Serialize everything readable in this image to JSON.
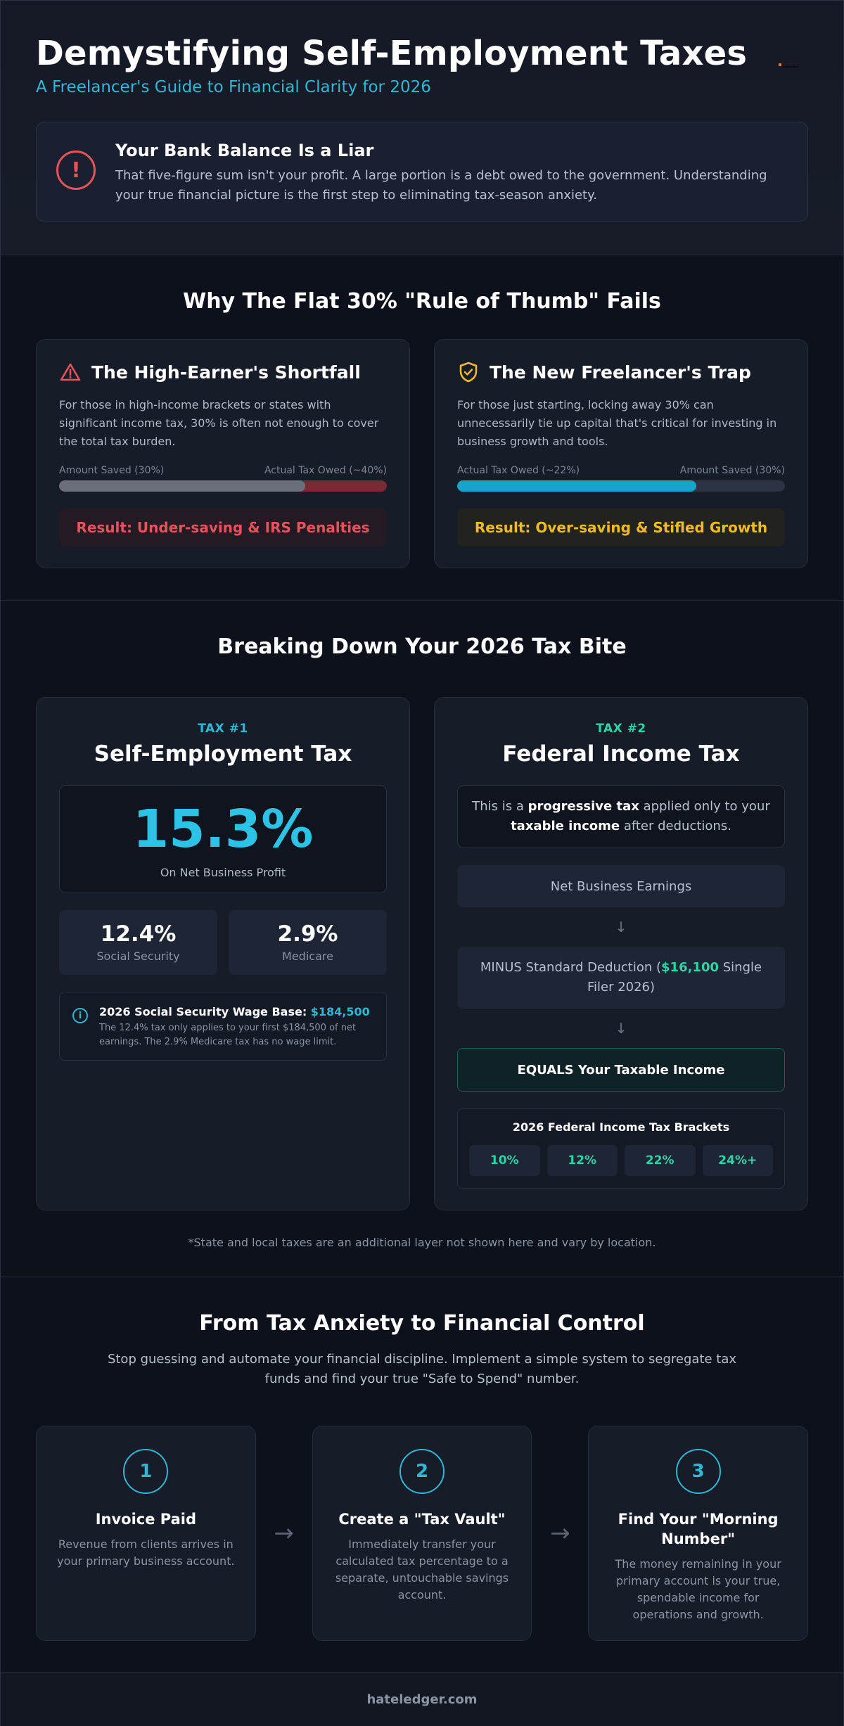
{
  "header": {
    "title": "Demystifying Self-Employment Taxes",
    "subtitle": "A Freelancer's Guide to Financial Clarity for 2026",
    "alert": {
      "icon": "exclamation-circle-icon",
      "title": "Your Bank Balance Is a Liar",
      "text": "That five-figure sum isn't your profit. A large portion is a debt owed to the government. Understanding your true financial picture is the first step to eliminating tax-season anxiety."
    }
  },
  "rule_section": {
    "title": "Why The Flat 30% \"Rule of Thumb\" Fails",
    "cards": [
      {
        "icon": "warning-triangle-icon",
        "title": "The High-Earner's Shortfall",
        "desc": "For those in high-income brackets or states with significant income tax, 30% is often not enough to cover the total tax burden.",
        "label_left": "Amount Saved (30%)",
        "label_right": "Actual Tax Owed (~40%)",
        "fill_fraction": 0.75,
        "fill_color": "#6b6f7c",
        "track_color": "#7a2a34",
        "result": "Result: Under-saving & IRS Penalties",
        "result_color": "#e5545b",
        "result_bg": "#231a24"
      },
      {
        "icon": "shield-check-icon",
        "title": "The New Freelancer's Trap",
        "desc": "For those just starting, locking away 30% can unnecessarily tie up capital that's critical for investing in business growth and tools.",
        "label_left": "Actual Tax Owed (~22%)",
        "label_right": "Amount Saved (30%)",
        "fill_fraction": 0.73,
        "fill_color": "#17a4c8",
        "track_color": "#2c3444",
        "result": "Result: Over-saving & Stifled Growth",
        "result_color": "#f2b92e",
        "result_bg": "#22231f"
      }
    ]
  },
  "tax_section": {
    "title": "Breaking Down Your 2026 Tax Bite",
    "se_tax": {
      "tag": "TAX #1",
      "title": "Self-Employment Tax",
      "rate": "15.3%",
      "rate_sub": "On Net Business Profit",
      "parts": [
        {
          "value": "12.4%",
          "label": "Social Security"
        },
        {
          "value": "2.9%",
          "label": "Medicare"
        }
      ],
      "info_icon": "info-circle-icon",
      "info_head": "2026 Social Security Wage Base: ",
      "info_amount": "$184,500",
      "info_text": "The 12.4% tax only applies to your first $184,500 of net earnings. The 2.9% Medicare tax has no wage limit."
    },
    "income_tax": {
      "tag": "TAX #2",
      "title": "Federal Income Tax",
      "intro_1": "This is a ",
      "intro_b1": "progressive tax",
      "intro_2": " applied only to your ",
      "intro_b2": "taxable income",
      "intro_3": " after deductions.",
      "step1": "Net Business Earnings",
      "arrow_icon": "arrow-down-icon",
      "step2_a": "MINUS Standard Deduction (",
      "step2_amount": "$16,100",
      "step2_b": " Single Filer 2026)",
      "step3": "EQUALS Your Taxable Income",
      "brackets_title": "2026 Federal Income Tax Brackets",
      "brackets": [
        "10%",
        "12%",
        "22%",
        "24%+"
      ]
    },
    "footnote": "*State and local taxes are an additional layer not shown here and vary by location."
  },
  "control_section": {
    "title": "From Tax Anxiety to Financial Control",
    "desc": "Stop guessing and automate your financial discipline. Implement a simple system to segregate tax funds and find your true \"Safe to Spend\" number.",
    "arrow_icon": "arrow-right-icon",
    "steps": [
      {
        "num": "1",
        "title": "Invoice Paid",
        "text": "Revenue from clients arrives in your primary business account."
      },
      {
        "num": "2",
        "title": "Create a \"Tax Vault\"",
        "text": "Immediately transfer your calculated tax percentage to a separate, untouchable savings account."
      },
      {
        "num": "3",
        "title": "Find Your \"Morning Number\"",
        "text": "The money remaining in your primary account is your true, spendable income for operations and growth."
      }
    ]
  },
  "footer": {
    "brand": "hateledger.com"
  }
}
